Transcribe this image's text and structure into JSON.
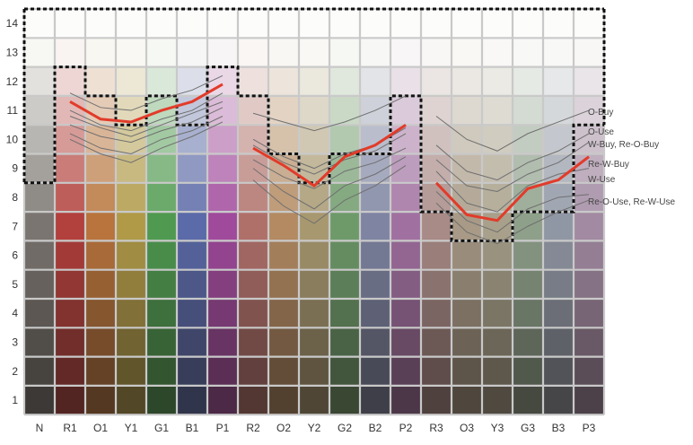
{
  "chart_data": {
    "type": "heatmap",
    "title": "",
    "xlabel": "",
    "ylabel": "",
    "categories": [
      "N",
      "R1",
      "O1",
      "Y1",
      "G1",
      "B1",
      "P1",
      "R2",
      "O2",
      "Y2",
      "G2",
      "B2",
      "P2",
      "R3",
      "O3",
      "Y3",
      "G3",
      "B3",
      "P3"
    ],
    "y_ticks": [
      1,
      2,
      3,
      4,
      5,
      6,
      7,
      8,
      9,
      10,
      11,
      12,
      13,
      14
    ],
    "ylim": [
      0.5,
      14.5
    ],
    "grid": true,
    "legend": "right",
    "hue_colors": {
      "N": "#7a7570",
      "R1": "#b2403c",
      "O1": "#b8743c",
      "Y1": "#b09a48",
      "G1": "#4f9a50",
      "B1": "#5b6aa8",
      "P1": "#a04a9c",
      "R2": "#b0706a",
      "O2": "#b38a62",
      "Y2": "#a89870",
      "G2": "#6e9a6a",
      "B2": "#7e84a2",
      "P2": "#a070a0",
      "R3": "#a88a86",
      "O3": "#a89a86",
      "Y3": "#a8a08a",
      "G3": "#8ea08a",
      "B3": "#9097a4",
      "P3": "#a28aa2"
    },
    "series": [
      {
        "name": "O-Buy",
        "role": "labeled",
        "x": [
          "R1",
          "O1",
          "Y1",
          "G1",
          "B1",
          "P1"
        ],
        "y": [
          11.6,
          11.1,
          11.0,
          11.4,
          11.7,
          12.2
        ]
      },
      {
        "name": "O-Buy",
        "role": "labeled",
        "x": [
          "R2",
          "O2",
          "Y2",
          "G2",
          "B2",
          "P2"
        ],
        "y": [
          10.9,
          10.6,
          10.3,
          10.6,
          11.0,
          11.5
        ]
      },
      {
        "name": "O-Buy",
        "role": "labeled",
        "x": [
          "R3",
          "O3",
          "Y3",
          "G3",
          "B3",
          "P3"
        ],
        "y": [
          10.8,
          10.0,
          9.6,
          10.2,
          10.6,
          11.0
        ]
      },
      {
        "name": "O-Use",
        "role": "labeled",
        "x": [
          "R1",
          "O1",
          "Y1",
          "G1",
          "B1",
          "P1"
        ],
        "y": [
          11.0,
          10.5,
          10.3,
          10.7,
          11.0,
          11.6
        ]
      },
      {
        "name": "O-Use",
        "role": "labeled",
        "x": [
          "R2",
          "O2",
          "Y2",
          "G2",
          "B2",
          "P2"
        ],
        "y": [
          10.0,
          9.4,
          9.0,
          9.5,
          9.8,
          10.4
        ]
      },
      {
        "name": "O-Use",
        "role": "labeled",
        "x": [
          "R3",
          "O3",
          "Y3",
          "G3",
          "B3",
          "P3"
        ],
        "y": [
          9.8,
          8.9,
          8.6,
          9.2,
          9.6,
          10.2
        ]
      },
      {
        "name": "W-Buy, Re-O-Buy",
        "role": "labeled",
        "x": [
          "R1",
          "O1",
          "Y1",
          "G1",
          "B1",
          "P1"
        ],
        "y": [
          10.8,
          10.4,
          10.1,
          10.5,
          10.9,
          11.3
        ]
      },
      {
        "name": "W-Buy, Re-O-Buy",
        "role": "labeled",
        "x": [
          "R2",
          "O2",
          "Y2",
          "G2",
          "B2",
          "P2"
        ],
        "y": [
          9.8,
          9.2,
          8.8,
          9.3,
          9.6,
          10.2
        ]
      },
      {
        "name": "W-Buy, Re-O-Buy",
        "role": "labeled",
        "x": [
          "R3",
          "O3",
          "Y3",
          "G3",
          "B3",
          "P3"
        ],
        "y": [
          9.3,
          8.4,
          8.2,
          8.8,
          9.2,
          9.9
        ]
      },
      {
        "name": "Re-W-Buy",
        "role": "labeled",
        "x": [
          "R1",
          "O1",
          "Y1",
          "G1",
          "B1",
          "P1"
        ],
        "y": [
          11.3,
          10.7,
          10.6,
          11.0,
          11.3,
          11.9
        ]
      },
      {
        "name": "Re-W-Buy",
        "role": "labeled",
        "x": [
          "R2",
          "O2",
          "Y2",
          "G2",
          "B2",
          "P2"
        ],
        "y": [
          9.7,
          9.1,
          8.4,
          9.4,
          9.8,
          10.5
        ]
      },
      {
        "name": "Re-W-Buy",
        "role": "labeled",
        "x": [
          "R3",
          "O3",
          "Y3",
          "G3",
          "B3",
          "P3"
        ],
        "y": [
          8.5,
          7.4,
          7.2,
          8.3,
          8.6,
          9.4
        ]
      },
      {
        "name": "W-Use",
        "role": "labeled",
        "x": [
          "R1",
          "O1",
          "Y1",
          "G1",
          "B1",
          "P1"
        ],
        "y": [
          10.5,
          10.1,
          9.9,
          10.3,
          10.6,
          11.1
        ]
      },
      {
        "name": "W-Use",
        "role": "labeled",
        "x": [
          "R2",
          "O2",
          "Y2",
          "G2",
          "B2",
          "P2"
        ],
        "y": [
          9.3,
          8.7,
          8.3,
          8.9,
          9.2,
          9.7
        ]
      },
      {
        "name": "W-Use",
        "role": "labeled",
        "x": [
          "R3",
          "O3",
          "Y3",
          "G3",
          "B3",
          "P3"
        ],
        "y": [
          8.9,
          7.8,
          7.5,
          8.4,
          8.8,
          9.0
        ]
      },
      {
        "name": "Re-O-Use, Re-W-Use",
        "role": "labeled",
        "x": [
          "R1",
          "O1",
          "Y1",
          "G1",
          "B1",
          "P1"
        ],
        "y": [
          10.2,
          9.7,
          9.5,
          10.0,
          10.3,
          10.8
        ]
      },
      {
        "name": "Re-O-Use, Re-W-Use",
        "role": "labeled",
        "x": [
          "R2",
          "O2",
          "Y2",
          "G2",
          "B2",
          "P2"
        ],
        "y": [
          9.0,
          8.2,
          7.6,
          8.4,
          8.8,
          9.4
        ]
      },
      {
        "name": "Re-O-Use, Re-W-Use",
        "role": "labeled",
        "x": [
          "R3",
          "O3",
          "Y3",
          "G3",
          "B3",
          "P3"
        ],
        "y": [
          8.2,
          7.2,
          6.8,
          7.6,
          8.0,
          8.1
        ]
      },
      {
        "role": "other",
        "x": [
          "R1",
          "O1",
          "Y1",
          "G1",
          "B1",
          "P1"
        ],
        "y": [
          10.0,
          9.5,
          9.2,
          9.7,
          10.1,
          10.6
        ]
      },
      {
        "role": "other",
        "x": [
          "R2",
          "O2",
          "Y2",
          "G2",
          "B2",
          "P2"
        ],
        "y": [
          8.6,
          7.7,
          7.1,
          7.9,
          8.4,
          9.1
        ]
      },
      {
        "role": "other",
        "x": [
          "R3",
          "O3",
          "Y3",
          "G3",
          "B3",
          "P3"
        ],
        "y": [
          7.8,
          6.8,
          6.4,
          7.0,
          7.5,
          7.9
        ]
      }
    ],
    "series_labels": [
      "O-Buy",
      "O-Use",
      "W-Buy, Re-O-Buy",
      "Re-W-Buy",
      "W-Use",
      "Re-O-Use, Re-W-Use"
    ],
    "highlight_series": "Re-W-Buy",
    "gamut_boundary_top": {
      "x": [
        "N",
        "R1",
        "O1",
        "Y1",
        "G1",
        "B1",
        "P1",
        "R2",
        "O2",
        "Y2",
        "G2",
        "B2",
        "P2",
        "R3",
        "O3",
        "Y3",
        "G3",
        "B3",
        "P3"
      ],
      "y": [
        14.5,
        14.5,
        14.5,
        14.5,
        14.5,
        14.5,
        14.5,
        14.5,
        14.5,
        14.5,
        14.5,
        14.5,
        14.5,
        14.5,
        14.5,
        14.5,
        14.5,
        14.5,
        14.5
      ]
    },
    "gamut_boundary_lower": {
      "x": [
        "N",
        "R1",
        "O1",
        "Y1",
        "G1",
        "B1",
        "P1",
        "R2",
        "O2",
        "Y2",
        "G2",
        "B2",
        "P2",
        "R3",
        "O3",
        "Y3",
        "G3",
        "B3",
        "P3"
      ],
      "y": [
        8.5,
        12.5,
        11.5,
        10.5,
        11.5,
        10.5,
        12.5,
        11.5,
        9.5,
        8.5,
        9.5,
        9.5,
        11.5,
        7.5,
        6.5,
        6.5,
        7.5,
        7.5,
        10.5
      ]
    },
    "colors": {
      "grid_line": "#c9c9c9",
      "boundary": "#111111",
      "highlight": "#e23b2a",
      "other_line": "#6f6f6f"
    }
  }
}
